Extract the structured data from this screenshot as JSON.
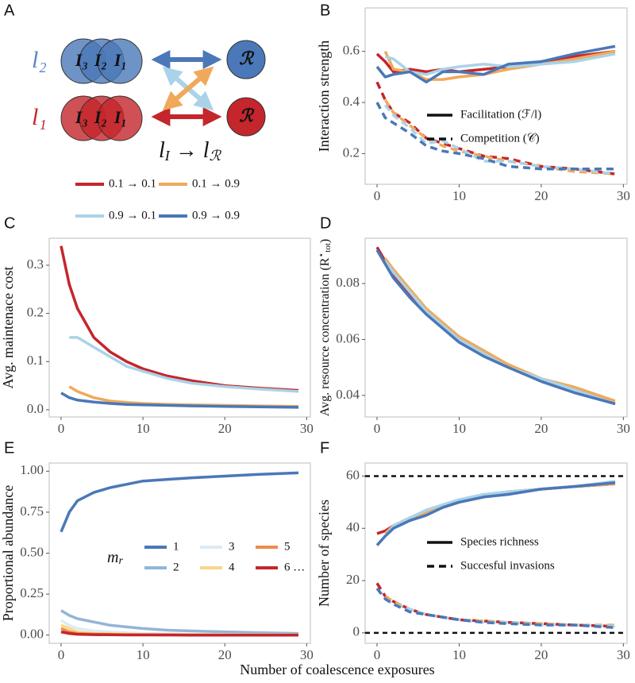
{
  "panel_a": {
    "letter": "A",
    "upper_label": "l₂",
    "lower_label": "l₁",
    "invaders": [
      "I₃",
      "I₂",
      "I₁"
    ],
    "resource": "ℛ",
    "formula": [
      "l",
      "I",
      " → l",
      "ℛ"
    ]
  },
  "x_label": "Number of coalescence exposures",
  "chart_data": [
    {
      "type": "line",
      "panel": "B",
      "y_label": "Interaction strength",
      "x": [
        0,
        1,
        2,
        4,
        6,
        8,
        10,
        13,
        16,
        20,
        24,
        29
      ],
      "xlim": [
        -1.45,
        30.45
      ],
      "xticks": [
        0,
        10,
        20,
        30
      ],
      "ylim": [
        0.08,
        0.77
      ],
      "yticks": [
        0.2,
        0.4,
        0.6
      ],
      "legend": [
        {
          "label": "Facilitation (ℱ/l)",
          "dash": false
        },
        {
          "label": "Competition (𝒞)",
          "dash": true
        }
      ],
      "series": [
        {
          "color": "#c4262b",
          "dash": false,
          "values": [
            0.59,
            0.56,
            0.52,
            0.53,
            0.52,
            0.53,
            0.52,
            0.53,
            0.54,
            0.56,
            0.58,
            0.6
          ]
        },
        {
          "color": "#f0a95a",
          "dash": false,
          "values": [
            null,
            0.6,
            0.53,
            0.52,
            0.49,
            0.49,
            0.5,
            0.51,
            0.53,
            0.55,
            0.57,
            0.6
          ]
        },
        {
          "color": "#aad3e8",
          "dash": false,
          "values": [
            null,
            0.58,
            0.57,
            0.52,
            0.51,
            0.53,
            0.54,
            0.55,
            0.54,
            0.55,
            0.56,
            0.59
          ]
        },
        {
          "color": "#4a78b8",
          "dash": false,
          "values": [
            0.54,
            0.5,
            0.51,
            0.52,
            0.48,
            0.52,
            0.52,
            0.51,
            0.55,
            0.56,
            0.59,
            0.62
          ]
        },
        {
          "color": "#c4262b",
          "dash": true,
          "values": [
            0.48,
            0.41,
            0.36,
            0.32,
            0.26,
            0.24,
            0.22,
            0.19,
            0.18,
            0.15,
            0.14,
            0.12
          ]
        },
        {
          "color": "#f0a95a",
          "dash": true,
          "values": [
            null,
            0.41,
            0.36,
            0.31,
            0.26,
            0.23,
            0.21,
            0.19,
            0.17,
            0.15,
            0.13,
            0.12
          ]
        },
        {
          "color": "#aad3e8",
          "dash": true,
          "values": [
            null,
            0.39,
            0.35,
            0.3,
            0.24,
            0.25,
            0.22,
            0.17,
            0.17,
            0.15,
            0.14,
            0.12
          ]
        },
        {
          "color": "#4a78b8",
          "dash": true,
          "values": [
            0.4,
            0.34,
            0.32,
            0.28,
            0.23,
            0.21,
            0.2,
            0.18,
            0.15,
            0.14,
            0.14,
            0.14
          ]
        }
      ]
    },
    {
      "type": "line",
      "panel": "C",
      "y_label": "Avg. maintenace cost",
      "x": [
        0,
        1,
        2,
        4,
        6,
        8,
        10,
        13,
        16,
        20,
        24,
        29
      ],
      "xlim": [
        -1.45,
        30.45
      ],
      "xticks": [
        0,
        10,
        20,
        30
      ],
      "ylim": [
        -0.015,
        0.356
      ],
      "yticks": [
        {
          "value": 0,
          "label": "0.0"
        },
        0.1,
        0.2,
        0.3
      ],
      "series": [
        {
          "name": "0.1 → 0.1",
          "color": "#c4262b",
          "values": [
            0.34,
            0.26,
            0.21,
            0.15,
            0.12,
            0.1,
            0.085,
            0.07,
            0.06,
            0.05,
            0.045,
            0.04
          ]
        },
        {
          "name": "0.1 → 0.9",
          "color": "#f0a95a",
          "values": [
            null,
            0.048,
            0.038,
            0.025,
            0.018,
            0.015,
            0.013,
            0.011,
            0.01,
            0.009,
            0.008,
            0.007
          ]
        },
        {
          "name": "0.9 → 0.1",
          "color": "#aad3e8",
          "values": [
            null,
            0.15,
            0.15,
            0.13,
            0.11,
            0.09,
            0.08,
            0.065,
            0.055,
            0.048,
            0.043,
            0.038
          ]
        },
        {
          "name": "0.9 → 0.9",
          "color": "#4a78b8",
          "values": [
            0.035,
            0.025,
            0.02,
            0.016,
            0.013,
            0.011,
            0.01,
            0.009,
            0.008,
            0.007,
            0.006,
            0.005
          ]
        }
      ]
    },
    {
      "type": "line",
      "panel": "D",
      "y_label": [
        "Avg. resource concentration (R",
        "⋆",
        "tot",
        ")"
      ],
      "x": [
        0,
        1,
        2,
        4,
        6,
        8,
        10,
        13,
        16,
        20,
        24,
        29
      ],
      "xlim": [
        -1.45,
        30.45
      ],
      "xticks": [
        0,
        10,
        20,
        30
      ],
      "ylim": [
        0.0323,
        0.0962
      ],
      "yticks": [
        0.04,
        0.06,
        0.08
      ],
      "series": [
        {
          "color": "#c4262b",
          "values": [
            0.093,
            0.088,
            0.083,
            0.076,
            0.07,
            0.065,
            0.06,
            0.055,
            0.051,
            0.046,
            0.042,
            0.037
          ]
        },
        {
          "color": "#f0a95a",
          "values": [
            null,
            0.089,
            0.085,
            0.078,
            0.071,
            0.066,
            0.061,
            0.056,
            0.051,
            0.046,
            0.043,
            0.038
          ]
        },
        {
          "color": "#aad3e8",
          "values": [
            null,
            0.088,
            0.084,
            0.077,
            0.07,
            0.065,
            0.06,
            0.055,
            0.05,
            0.046,
            0.042,
            0.037
          ]
        },
        {
          "color": "#4a78b8",
          "values": [
            0.092,
            0.087,
            0.082,
            0.075,
            0.069,
            0.064,
            0.059,
            0.054,
            0.05,
            0.045,
            0.041,
            0.037
          ]
        }
      ]
    },
    {
      "type": "line",
      "panel": "E",
      "y_label": "Proportional abundance",
      "legend_title": [
        "m",
        "r"
      ],
      "x": [
        0,
        1,
        2,
        4,
        6,
        8,
        10,
        13,
        16,
        20,
        24,
        29
      ],
      "xlim": [
        -1.45,
        30.45
      ],
      "xticks": [
        0,
        10,
        20,
        30
      ],
      "ylim": [
        -0.05,
        1.05
      ],
      "yticks": [
        {
          "value": 0,
          "label": "0.00"
        },
        {
          "value": 0.25,
          "label": "0.25"
        },
        {
          "value": 0.5,
          "label": "0.50"
        },
        {
          "value": 0.75,
          "label": "0.75"
        },
        {
          "value": 1,
          "label": "1.00"
        }
      ],
      "series": [
        {
          "name": "1",
          "color": "#4a78b8",
          "values": [
            0.63,
            0.75,
            0.82,
            0.87,
            0.9,
            0.92,
            0.94,
            0.95,
            0.96,
            0.97,
            0.98,
            0.99
          ]
        },
        {
          "name": "2",
          "color": "#93b5d6",
          "values": [
            0.15,
            0.12,
            0.1,
            0.08,
            0.06,
            0.05,
            0.04,
            0.03,
            0.025,
            0.02,
            0.015,
            0.01
          ]
        },
        {
          "name": "3",
          "color": "#dcebf4",
          "values": [
            0.09,
            0.06,
            0.04,
            0.025,
            0.02,
            0.015,
            0.01,
            0.008,
            0.005,
            0.004,
            0.003,
            0.002
          ]
        },
        {
          "name": "4",
          "color": "#f7d889",
          "values": [
            0.06,
            0.04,
            0.02,
            0.01,
            0.008,
            0.006,
            0.004,
            0.003,
            0.002,
            0.002,
            0.001,
            0.001
          ]
        },
        {
          "name": "5",
          "color": "#f08a4b",
          "values": [
            0.04,
            0.02,
            0.01,
            0.006,
            0.004,
            0.003,
            0.002,
            0.001,
            0.001,
            0.001,
            0.001,
            0.001
          ]
        },
        {
          "name": "6 …",
          "color": "#c4262b",
          "values": [
            0.02,
            0.01,
            0.005,
            0.003,
            0.002,
            0.001,
            0.001,
            0.001,
            0,
            0,
            0,
            0
          ]
        }
      ]
    },
    {
      "type": "line",
      "panel": "F",
      "y_label": "Number of species",
      "x": [
        0,
        1,
        2,
        4,
        6,
        8,
        10,
        13,
        16,
        20,
        24,
        29
      ],
      "xlim": [
        -1.45,
        30.45
      ],
      "xticks": [
        0,
        10,
        20,
        30
      ],
      "ylim": [
        -4,
        65
      ],
      "yticks": [
        0,
        20,
        40,
        60
      ],
      "hlines": [
        0,
        60
      ],
      "legend": [
        {
          "label": "Species richness",
          "dash": false
        },
        {
          "label": "Succesful invasions",
          "dash": true
        }
      ],
      "series": [
        {
          "color": "#c4262b",
          "dash": false,
          "values": [
            38,
            39,
            41,
            44,
            46,
            48,
            50,
            52,
            54,
            55,
            56,
            57
          ]
        },
        {
          "color": "#f0a95a",
          "dash": false,
          "values": [
            null,
            38,
            41,
            44,
            46,
            48,
            50,
            52,
            54,
            55,
            56,
            57
          ]
        },
        {
          "color": "#aad3e8",
          "dash": false,
          "values": [
            null,
            37,
            41,
            44,
            47,
            49,
            51,
            53,
            54,
            55,
            56,
            58
          ]
        },
        {
          "color": "#4a78b8",
          "dash": false,
          "values": [
            33.5,
            37,
            40,
            43,
            45,
            48,
            50,
            52,
            53,
            55,
            56,
            57.5
          ]
        },
        {
          "color": "#c4262b",
          "dash": true,
          "values": [
            19,
            14,
            12,
            9,
            7,
            6,
            5,
            4.5,
            4,
            3.5,
            3,
            2.5
          ]
        },
        {
          "color": "#f0a95a",
          "dash": true,
          "values": [
            null,
            14,
            12,
            9,
            7,
            6,
            5,
            4.5,
            4,
            3.5,
            3,
            3
          ]
        },
        {
          "color": "#aad3e8",
          "dash": true,
          "values": [
            null,
            13,
            11,
            9,
            7,
            6,
            5,
            4,
            4,
            3,
            3,
            2.5
          ]
        },
        {
          "color": "#4a78b8",
          "dash": true,
          "values": [
            17,
            13,
            11,
            8,
            7,
            6,
            5,
            4,
            3.5,
            3,
            3,
            2
          ]
        }
      ]
    }
  ]
}
